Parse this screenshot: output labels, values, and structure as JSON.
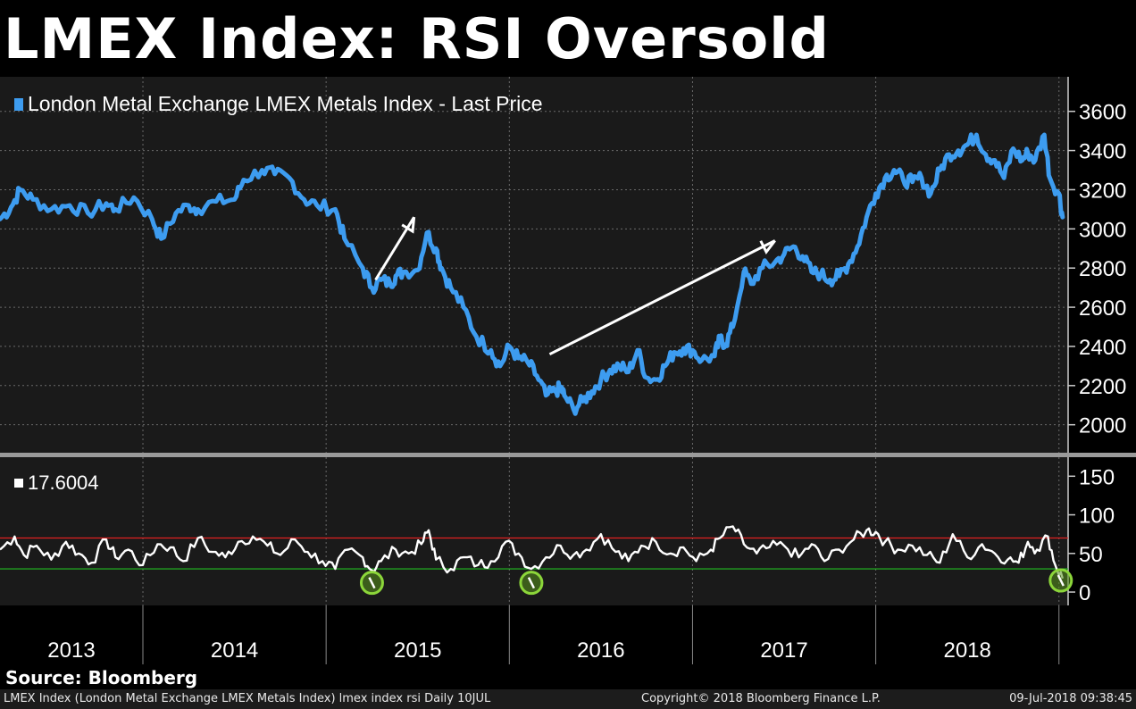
{
  "title": "LMEX Index: RSI Oversold",
  "source": "Source: Bloomberg",
  "footer": {
    "left": "LMEX Index (London Metal Exchange LMEX Metals Index) lmex index rsi  Daily 10JUL",
    "center": "Copyright© 2018 Bloomberg Finance L.P.",
    "right": "09-Jul-2018 09:38:45"
  },
  "colors": {
    "background": "#000000",
    "plot_bg": "#1a1a1a",
    "price_line": "#3d9cf0",
    "rsi_line": "#ffffff",
    "overbought": "#e02020",
    "oversold": "#22c022",
    "marker": "#8cd63a",
    "grid": "#6a6a6a"
  },
  "chart_data": [
    {
      "type": "line",
      "panel": "price",
      "legend": "London Metal Exchange LMEX Metals Index - Last Price",
      "x_labels": [
        "2013",
        "2014",
        "2015",
        "2016",
        "2017",
        "2018"
      ],
      "x_range": [
        2012.72,
        2018.55
      ],
      "ylim": [
        1880,
        3740
      ],
      "yticks": [
        2000,
        2200,
        2400,
        2600,
        2800,
        3000,
        3200,
        3400,
        3600
      ],
      "series": [
        {
          "name": "LMEX Index",
          "x": [
            2012.72,
            2012.78,
            2012.83,
            2012.9,
            2013.0,
            2013.1,
            2013.2,
            2013.3,
            2013.35,
            2013.45,
            2013.55,
            2013.6,
            2013.68,
            2013.75,
            2013.8,
            2013.9,
            2014.0,
            2014.05,
            2014.15,
            2014.22,
            2014.3,
            2014.38,
            2014.45,
            2014.55,
            2014.6,
            2014.7,
            2014.75,
            2014.8,
            2014.85,
            2014.88,
            2014.92,
            2015.0,
            2015.05,
            2015.1,
            2015.13,
            2015.18,
            2015.25,
            2015.32,
            2015.4,
            2015.45,
            2015.5,
            2015.55,
            2015.6,
            2015.65,
            2015.7,
            2015.75,
            2015.78,
            2015.8,
            2015.85,
            2015.9,
            2015.95,
            2016.0,
            2016.05,
            2016.1,
            2016.15,
            2016.2,
            2016.25,
            2016.3,
            2016.35,
            2016.4,
            2016.45,
            2016.5,
            2016.55,
            2016.62,
            2016.65,
            2016.68,
            2016.72,
            2016.78,
            2016.82,
            2016.88,
            2016.95,
            2017.0,
            2017.05,
            2017.1,
            2017.15,
            2017.2,
            2017.25,
            2017.3,
            2017.35,
            2017.4,
            2017.45,
            2017.5,
            2017.55,
            2017.6,
            2017.65,
            2017.7,
            2017.75,
            2017.8,
            2017.85,
            2017.9,
            2017.95,
            2018.0,
            2018.05,
            2018.1,
            2018.15,
            2018.2,
            2018.25,
            2018.3,
            2018.33,
            2018.37,
            2018.42,
            2018.45,
            2018.5,
            2018.52
          ],
          "values": [
            3050,
            3110,
            3200,
            3150,
            3100,
            3120,
            3080,
            3130,
            3100,
            3160,
            3050,
            2950,
            3080,
            3120,
            3100,
            3140,
            3150,
            3250,
            3300,
            3280,
            3260,
            3150,
            3120,
            3100,
            2950,
            2800,
            2700,
            2740,
            2720,
            2760,
            2780,
            2790,
            2980,
            2900,
            2800,
            2700,
            2600,
            2450,
            2380,
            2300,
            2400,
            2340,
            2320,
            2250,
            2150,
            2170,
            2190,
            2150,
            2080,
            2120,
            2170,
            2230,
            2280,
            2300,
            2270,
            2380,
            2240,
            2230,
            2300,
            2370,
            2390,
            2380,
            2330,
            2350,
            2440,
            2410,
            2500,
            2780,
            2720,
            2800,
            2830,
            2870,
            2910,
            2860,
            2780,
            2770,
            2740,
            2760,
            2820,
            2910,
            3060,
            3180,
            3260,
            3300,
            3250,
            3240,
            3260,
            3180,
            3300,
            3380,
            3400,
            3430,
            3480,
            3380,
            3350,
            3260,
            3410,
            3350,
            3390,
            3350,
            3480,
            3260,
            3180,
            3060
          ]
        }
      ],
      "annotations": [
        {
          "type": "arrow",
          "from": [
            2014.77,
            2740
          ],
          "to": [
            2014.98,
            3060
          ]
        },
        {
          "type": "arrow",
          "from": [
            2015.72,
            2360
          ],
          "to": [
            2016.95,
            2940
          ]
        }
      ]
    },
    {
      "type": "line",
      "panel": "rsi",
      "legend": "17.6004",
      "x_range": [
        2012.72,
        2018.55
      ],
      "ylim": [
        -15,
        170
      ],
      "yticks": [
        0,
        50,
        100,
        150
      ],
      "overbought_level": 70,
      "oversold_level": 30,
      "oversold_markers": [
        {
          "x": 2014.75,
          "y": 12
        },
        {
          "x": 2015.62,
          "y": 12
        },
        {
          "x": 2018.51,
          "y": 15
        }
      ],
      "series": [
        {
          "name": "RSI",
          "last_value": 17.6004,
          "x": [
            2012.72,
            2012.8,
            2012.85,
            2012.92,
            2013.0,
            2013.08,
            2013.15,
            2013.22,
            2013.3,
            2013.35,
            2013.42,
            2013.5,
            2013.58,
            2013.65,
            2013.72,
            2013.8,
            2013.88,
            2013.95,
            2014.02,
            2014.1,
            2014.18,
            2014.25,
            2014.33,
            2014.4,
            2014.48,
            2014.55,
            2014.62,
            2014.7,
            2014.75,
            2014.8,
            2014.88,
            2014.95,
            2015.02,
            2015.06,
            2015.1,
            2015.18,
            2015.25,
            2015.33,
            2015.4,
            2015.48,
            2015.55,
            2015.62,
            2015.7,
            2015.78,
            2015.85,
            2015.92,
            2016.0,
            2016.08,
            2016.15,
            2016.22,
            2016.3,
            2016.38,
            2016.45,
            2016.52,
            2016.6,
            2016.65,
            2016.72,
            2016.78,
            2016.85,
            2016.92,
            2017.0,
            2017.08,
            2017.15,
            2017.22,
            2017.3,
            2017.38,
            2017.45,
            2017.5,
            2017.55,
            2017.62,
            2017.7,
            2017.78,
            2017.85,
            2017.92,
            2018.0,
            2018.08,
            2018.15,
            2018.22,
            2018.28,
            2018.33,
            2018.38,
            2018.44,
            2018.48,
            2018.52
          ],
          "values": [
            55,
            72,
            48,
            60,
            42,
            65,
            50,
            38,
            68,
            45,
            55,
            35,
            62,
            58,
            40,
            70,
            52,
            45,
            65,
            72,
            60,
            48,
            68,
            52,
            40,
            30,
            55,
            45,
            28,
            40,
            55,
            50,
            62,
            80,
            42,
            30,
            45,
            35,
            40,
            65,
            50,
            30,
            45,
            60,
            48,
            55,
            75,
            52,
            40,
            60,
            65,
            50,
            58,
            40,
            55,
            70,
            85,
            62,
            50,
            58,
            60,
            45,
            62,
            40,
            55,
            68,
            80,
            78,
            65,
            55,
            60,
            48,
            38,
            75,
            45,
            62,
            50,
            42,
            38,
            65,
            55,
            72,
            35,
            17.6
          ]
        }
      ]
    }
  ]
}
